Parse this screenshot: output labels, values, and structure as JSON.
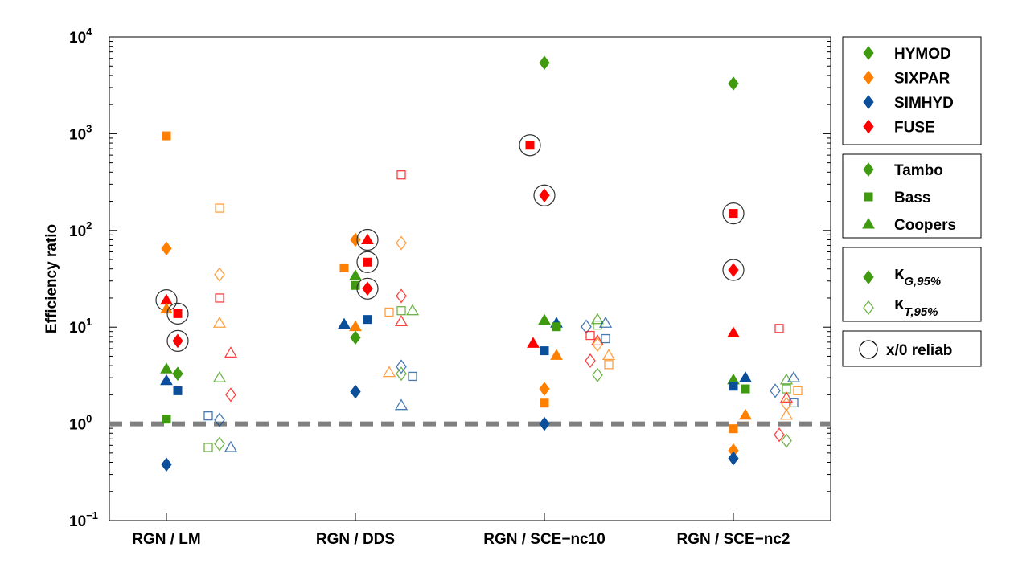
{
  "chart_data": {
    "type": "scatter",
    "title": "",
    "xlabel": "",
    "ylabel": "Efficiency ratio",
    "yscale": "log",
    "ylim": [
      0.1,
      10000
    ],
    "yticks": [
      {
        "base": "10",
        "exp": "4"
      },
      {
        "base": "10",
        "exp": "3"
      },
      {
        "base": "10",
        "exp": "2"
      },
      {
        "base": "10",
        "exp": "1"
      },
      {
        "base": "10",
        "exp": "0"
      },
      {
        "base": "10",
        "exp": "−1"
      }
    ],
    "grid": false,
    "reference_line": {
      "value": 1,
      "style": "dashed",
      "color": "#808080"
    },
    "categories": [
      "RGN / LM",
      "RGN / DDS",
      "RGN / SCE−nc10",
      "RGN / SCE−nc2"
    ],
    "point_fields": [
      "model",
      "catchment",
      "metric",
      "value",
      "x0_reliab"
    ],
    "groups": [
      {
        "category": "RGN / LM",
        "points": [
          [
            "SIXPAR",
            "Bass",
            "G",
            950,
            0
          ],
          [
            "SIXPAR",
            "Tambo",
            "G",
            65,
            0
          ],
          [
            "FUSE",
            "Coopers",
            "G",
            19,
            1
          ],
          [
            "SIXPAR",
            "Coopers",
            "G",
            15.4,
            0
          ],
          [
            "FUSE",
            "Bass",
            "G",
            13.8,
            1
          ],
          [
            "FUSE",
            "Tambo",
            "G",
            7.2,
            1
          ],
          [
            "HYMOD",
            "Coopers",
            "G",
            3.7,
            0
          ],
          [
            "HYMOD",
            "Tambo",
            "G",
            3.3,
            0
          ],
          [
            "SIMHYD",
            "Coopers",
            "G",
            2.8,
            0
          ],
          [
            "SIMHYD",
            "Bass",
            "G",
            2.2,
            0
          ],
          [
            "HYMOD",
            "Bass",
            "G",
            1.12,
            0
          ],
          [
            "SIMHYD",
            "Tambo",
            "G",
            0.38,
            0
          ],
          [
            "SIXPAR",
            "Bass",
            "T",
            170,
            0
          ],
          [
            "SIXPAR",
            "Tambo",
            "T",
            35,
            0
          ],
          [
            "FUSE",
            "Bass",
            "T",
            20,
            0
          ],
          [
            "SIXPAR",
            "Coopers",
            "T",
            11,
            0
          ],
          [
            "FUSE",
            "Coopers",
            "T",
            5.4,
            0
          ],
          [
            "HYMOD",
            "Coopers",
            "T",
            3.0,
            0
          ],
          [
            "FUSE",
            "Tambo",
            "T",
            2.0,
            0
          ],
          [
            "SIMHYD",
            "Bass",
            "T",
            1.21,
            0
          ],
          [
            "SIMHYD",
            "Tambo",
            "T",
            1.1,
            0
          ],
          [
            "HYMOD",
            "Bass",
            "T",
            0.57,
            0
          ],
          [
            "HYMOD",
            "Tambo",
            "T",
            0.62,
            0
          ],
          [
            "SIMHYD",
            "Coopers",
            "T",
            0.57,
            0
          ]
        ]
      },
      {
        "category": "RGN / DDS",
        "points": [
          [
            "SIXPAR",
            "Tambo",
            "G",
            80,
            0
          ],
          [
            "FUSE",
            "Coopers",
            "G",
            80,
            1
          ],
          [
            "FUSE",
            "Bass",
            "G",
            47,
            1
          ],
          [
            "SIXPAR",
            "Bass",
            "G",
            41,
            0
          ],
          [
            "HYMOD",
            "Coopers",
            "G",
            34,
            0
          ],
          [
            "HYMOD",
            "Bass",
            "G",
            27,
            0
          ],
          [
            "FUSE",
            "Tambo",
            "G",
            25,
            1
          ],
          [
            "SIMHYD",
            "Bass",
            "G",
            12,
            0
          ],
          [
            "SIMHYD",
            "Coopers",
            "G",
            10.7,
            0
          ],
          [
            "SIXPAR",
            "Coopers",
            "G",
            10.1,
            0
          ],
          [
            "HYMOD",
            "Tambo",
            "G",
            7.8,
            0
          ],
          [
            "SIMHYD",
            "Tambo",
            "G",
            2.15,
            0
          ],
          [
            "FUSE",
            "Bass",
            "T",
            375,
            0
          ],
          [
            "SIXPAR",
            "Tambo",
            "T",
            74,
            0
          ],
          [
            "FUSE",
            "Tambo",
            "T",
            21,
            0
          ],
          [
            "SIXPAR",
            "Bass",
            "T",
            14.3,
            0
          ],
          [
            "HYMOD",
            "Bass",
            "T",
            14.8,
            0
          ],
          [
            "HYMOD",
            "Coopers",
            "T",
            14.8,
            0
          ],
          [
            "FUSE",
            "Coopers",
            "T",
            11.4,
            0
          ],
          [
            "SIMHYD",
            "Tambo",
            "T",
            3.9,
            0
          ],
          [
            "SIXPAR",
            "Coopers",
            "T",
            3.4,
            0
          ],
          [
            "HYMOD",
            "Tambo",
            "T",
            3.3,
            0
          ],
          [
            "SIMHYD",
            "Bass",
            "T",
            3.1,
            0
          ],
          [
            "SIMHYD",
            "Coopers",
            "T",
            1.55,
            0
          ]
        ]
      },
      {
        "category": "RGN / SCE−nc10",
        "points": [
          [
            "HYMOD",
            "Tambo",
            "G",
            5400,
            0
          ],
          [
            "FUSE",
            "Bass",
            "G",
            760,
            1
          ],
          [
            "FUSE",
            "Tambo",
            "G",
            230,
            1
          ],
          [
            "HYMOD",
            "Coopers",
            "G",
            11.8,
            0
          ],
          [
            "SIMHYD",
            "Coopers",
            "G",
            11,
            0
          ],
          [
            "HYMOD",
            "Bass",
            "G",
            10.1,
            0
          ],
          [
            "FUSE",
            "Coopers",
            "G",
            6.8,
            0
          ],
          [
            "SIMHYD",
            "Bass",
            "G",
            5.7,
            0
          ],
          [
            "SIXPAR",
            "Coopers",
            "G",
            5.1,
            0
          ],
          [
            "SIXPAR",
            "Tambo",
            "G",
            2.3,
            0
          ],
          [
            "SIXPAR",
            "Bass",
            "G",
            1.64,
            0
          ],
          [
            "SIMHYD",
            "Tambo",
            "G",
            1.0,
            0
          ],
          [
            "SIMHYD",
            "Tambo",
            "T",
            10.1,
            0
          ],
          [
            "HYMOD",
            "Coopers",
            "T",
            12,
            0
          ],
          [
            "HYMOD",
            "Bass",
            "T",
            10.5,
            0
          ],
          [
            "SIMHYD",
            "Coopers",
            "T",
            11,
            0
          ],
          [
            "FUSE",
            "Bass",
            "T",
            8.2,
            0
          ],
          [
            "FUSE",
            "Coopers",
            "T",
            7.2,
            0
          ],
          [
            "SIXPAR",
            "Tambo",
            "T",
            6.6,
            0
          ],
          [
            "SIMHYD",
            "Bass",
            "T",
            7.6,
            0
          ],
          [
            "FUSE",
            "Tambo",
            "T",
            4.5,
            0
          ],
          [
            "SIXPAR",
            "Coopers",
            "T",
            5.1,
            0
          ],
          [
            "SIXPAR",
            "Bass",
            "T",
            4.1,
            0
          ],
          [
            "HYMOD",
            "Tambo",
            "T",
            3.2,
            0
          ]
        ]
      },
      {
        "category": "RGN / SCE−nc2",
        "points": [
          [
            "HYMOD",
            "Tambo",
            "G",
            3300,
            0
          ],
          [
            "FUSE",
            "Bass",
            "G",
            150,
            1
          ],
          [
            "FUSE",
            "Tambo",
            "G",
            39,
            1
          ],
          [
            "FUSE",
            "Coopers",
            "G",
            8.7,
            0
          ],
          [
            "HYMOD",
            "Coopers",
            "G",
            2.85,
            0
          ],
          [
            "SIMHYD",
            "Bass",
            "G",
            2.45,
            0
          ],
          [
            "SIMHYD",
            "Coopers",
            "G",
            3.0,
            0
          ],
          [
            "HYMOD",
            "Bass",
            "G",
            2.3,
            0
          ],
          [
            "SIXPAR",
            "Coopers",
            "G",
            1.23,
            0
          ],
          [
            "SIXPAR",
            "Bass",
            "G",
            0.89,
            0
          ],
          [
            "SIXPAR",
            "Tambo",
            "G",
            0.53,
            0
          ],
          [
            "SIMHYD",
            "Tambo",
            "G",
            0.44,
            0
          ],
          [
            "FUSE",
            "Bass",
            "T",
            9.7,
            0
          ],
          [
            "HYMOD",
            "Coopers",
            "T",
            2.85,
            0
          ],
          [
            "SIMHYD",
            "Coopers",
            "T",
            3.0,
            0
          ],
          [
            "SIMHYD",
            "Tambo",
            "T",
            2.2,
            0
          ],
          [
            "HYMOD",
            "Bass",
            "T",
            2.3,
            0
          ],
          [
            "SIXPAR",
            "Bass",
            "T",
            2.2,
            0
          ],
          [
            "FUSE",
            "Coopers",
            "T",
            1.85,
            0
          ],
          [
            "SIMHYD",
            "Bass",
            "T",
            1.65,
            0
          ],
          [
            "SIXPAR",
            "Tambo",
            "T",
            1.6,
            0
          ],
          [
            "SIXPAR",
            "Coopers",
            "T",
            1.23,
            0
          ],
          [
            "FUSE",
            "Tambo",
            "T",
            0.77,
            0
          ],
          [
            "HYMOD",
            "Tambo",
            "T",
            0.67,
            0
          ]
        ]
      }
    ],
    "legend": {
      "placement": "right",
      "models": [
        {
          "name": "HYMOD",
          "color": "#3f9a0f"
        },
        {
          "name": "SIXPAR",
          "color": "#ff7f00"
        },
        {
          "name": "SIMHYD",
          "color": "#0b4e9a"
        },
        {
          "name": "FUSE",
          "color": "#ff0000"
        }
      ],
      "catchments": [
        {
          "name": "Tambo",
          "marker": "diamond"
        },
        {
          "name": "Bass",
          "marker": "square"
        },
        {
          "name": "Coopers",
          "marker": "triangle"
        }
      ],
      "metrics": [
        {
          "symbol": "κ",
          "sub": "G,95%",
          "fill": "filled"
        },
        {
          "symbol": "κ",
          "sub": "T,95%",
          "fill": "open"
        }
      ],
      "reliab": {
        "label": "x/0 reliab",
        "marker": "circle"
      }
    }
  }
}
